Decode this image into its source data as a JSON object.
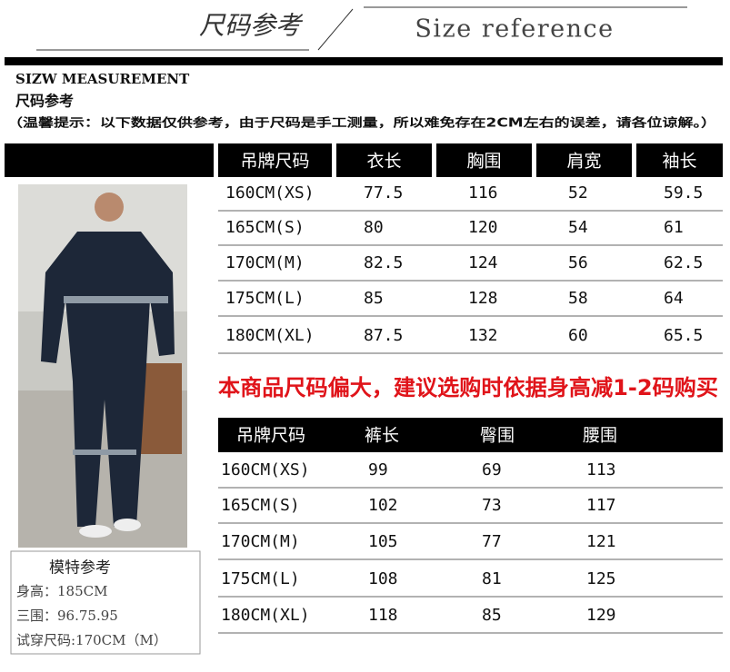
{
  "header": {
    "title_cn": "尺码参考",
    "title_en": "Size reference"
  },
  "section": {
    "label_en": "SIZW MEASUREMENT",
    "label_cn": "尺码参考",
    "notice": "（温馨提示：以下数据仅供参考，由于尺码是手工测量，所以难免存在2CM左右的误差，请各位谅解。）"
  },
  "table1": {
    "columns": [
      "吊牌尺码",
      "衣长",
      "胸围",
      "肩宽",
      "袖长"
    ],
    "rows": [
      [
        "160CM(XS)",
        77.5,
        116,
        52,
        59.5
      ],
      [
        "165CM(S)",
        80,
        120,
        54,
        61
      ],
      [
        "170CM(M)",
        82.5,
        124,
        56,
        62.5
      ],
      [
        "175CM(L)",
        85,
        128,
        58,
        64
      ],
      [
        "180CM(XL)",
        87.5,
        132,
        60,
        65.5
      ]
    ]
  },
  "notice_red": "本商品尺码偏大，建议选购时依据身高减1-2码购买",
  "table2": {
    "columns": [
      "吊牌尺码",
      "裤长",
      "臀围",
      "腰围"
    ],
    "rows": [
      [
        "160CM(XS)",
        99,
        69,
        113
      ],
      [
        "165CM(S)",
        102,
        73,
        117
      ],
      [
        "170CM(M)",
        105,
        77,
        121
      ],
      [
        "175CM(L)",
        108,
        81,
        125
      ],
      [
        "180CM(XL)",
        118,
        85,
        129
      ]
    ]
  },
  "model": {
    "title": "模特参考",
    "lines": [
      "身高：185CM",
      "三围：96.75.95",
      "试穿尺码:170CM（M）"
    ]
  }
}
